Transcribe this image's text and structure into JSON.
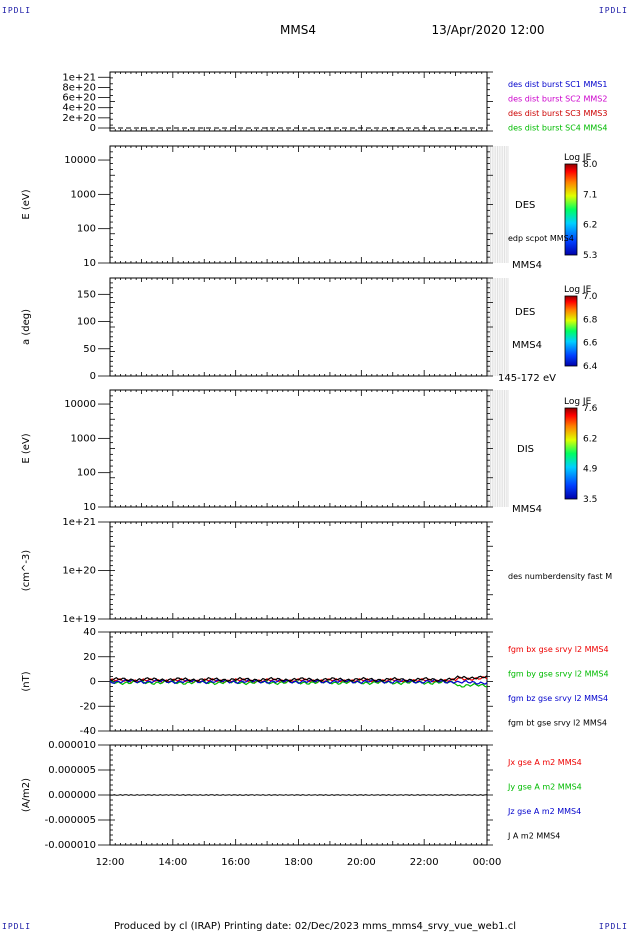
{
  "header": {
    "corner_label": "IPDLI",
    "spacecraft": "MMS4",
    "date_time": "13/Apr/2020 12:00"
  },
  "footer": {
    "text": "Produced by cl (IRAP)   Printing date: 02/Dec/2023   mms_mms4_srvy_vue_web1.cl"
  },
  "colors": {
    "mms1": "#0000cc",
    "mms2": "#cc00cc",
    "mms3": "#cc0000",
    "mms4": "#00bb00",
    "bx": "#ee0000",
    "by": "#00bb00",
    "bz": "#0000cc",
    "bt": "#000000"
  },
  "chart_data": [
    {
      "type": "line",
      "id": "panel1",
      "ylabel": "",
      "yticks": [
        "0",
        "2e+20",
        "4e+20",
        "6e+20",
        "8e+20",
        "1e+21"
      ],
      "ylim": [
        0,
        1e+21
      ],
      "series": [
        {
          "name": "des dist burst SC1 MMS1",
          "color": "#0000cc"
        },
        {
          "name": "des dist burst SC2 MMS2",
          "color": "#cc00cc"
        },
        {
          "name": "des dist burst SC3 MMS3",
          "color": "#cc0000"
        },
        {
          "name": "des dist burst SC4 MMS4",
          "color": "#00bb00"
        }
      ],
      "dashed_line_at": 0
    },
    {
      "type": "heatmap",
      "id": "panel2",
      "ylabel": "E (eV)",
      "yticks": [
        "10",
        "100",
        "1000",
        "10000"
      ],
      "ylog": true,
      "data_start_x": "22:40",
      "labels": [
        "DES",
        "edp scpot MMS4",
        "MMS4"
      ],
      "colorbar": {
        "title": "Log JE",
        "ticks": [
          "8.0",
          "7.1",
          "6.2",
          "5.3"
        ],
        "min": 5.3,
        "max": 8.0
      }
    },
    {
      "type": "heatmap",
      "id": "panel3",
      "ylabel": "a (deg)",
      "yticks": [
        "0",
        "50",
        "100",
        "150"
      ],
      "ylim": [
        0,
        180
      ],
      "data_start_x": "22:40",
      "labels": [
        "DES",
        "MMS4",
        "145-172 eV"
      ],
      "colorbar": {
        "title": "Log JE",
        "ticks": [
          "7.0",
          "6.8",
          "6.6",
          "6.4"
        ],
        "min": 6.4,
        "max": 7.0
      }
    },
    {
      "type": "heatmap",
      "id": "panel4",
      "ylabel": "E (eV)",
      "yticks": [
        "10",
        "100",
        "1000",
        "10000"
      ],
      "ylog": true,
      "data_start_x": "22:40",
      "labels": [
        "DIS",
        "MMS4"
      ],
      "colorbar": {
        "title": "Log JE",
        "ticks": [
          "7.6",
          "6.2",
          "4.9",
          "3.5"
        ],
        "min": 3.5,
        "max": 7.6
      }
    },
    {
      "type": "line",
      "id": "panel5",
      "ylabel": "(cm^-3)",
      "yticks": [
        "1e+19",
        "1e+20",
        "1e+21"
      ],
      "ylog": true,
      "series": [
        {
          "name": "des numberdensity fast M",
          "color": "#000000"
        }
      ]
    },
    {
      "type": "line",
      "id": "panel6",
      "ylabel": "(nT)",
      "yticks": [
        "-40",
        "-20",
        "0",
        "20",
        "40"
      ],
      "ylim": [
        -50,
        50
      ],
      "series": [
        {
          "name": "fgm bx gse srvy l2 MMS4",
          "color": "#ee0000",
          "level": 1
        },
        {
          "name": "fgm by gse srvy l2 MMS4",
          "color": "#00bb00",
          "level": -1
        },
        {
          "name": "fgm bz gse srvy l2 MMS4",
          "color": "#0000cc",
          "level": 0
        },
        {
          "name": "fgm bt gse srvy l2 MMS4",
          "color": "#000000",
          "level": 2
        }
      ]
    },
    {
      "type": "line",
      "id": "panel7",
      "ylabel": "(A/m2)",
      "yticks": [
        "-0.000010",
        "-0.000005",
        "0.000000",
        "0.000005",
        "0.000010"
      ],
      "ylim": [
        -1e-05,
        1e-05
      ],
      "series": [
        {
          "name": "Jx gse A m2 MMS4",
          "color": "#ee0000"
        },
        {
          "name": "Jy gse A m2 MMS4",
          "color": "#00bb00"
        },
        {
          "name": "Jz gse A m2 MMS4",
          "color": "#0000cc"
        },
        {
          "name": "J A m2 MMS4",
          "color": "#000000"
        }
      ]
    }
  ],
  "x_axis": {
    "ticks": [
      "12:00",
      "14:00",
      "16:00",
      "18:00",
      "20:00",
      "22:00",
      "00:00"
    ]
  }
}
